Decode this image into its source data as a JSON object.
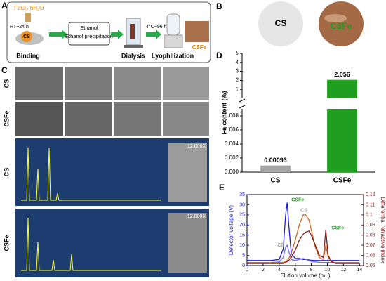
{
  "panel_labels": [
    "A",
    "B",
    "C",
    "D",
    "E"
  ],
  "panel_a": {
    "reagent": "FeCl₃·6H₂O",
    "condition_1": "RT~24 h",
    "material": "CS",
    "step_1": "Binding",
    "step_2": "Ethanol precipitation",
    "step_3": "Dialysis",
    "condition_2": "4°C~96 h",
    "step_4": "Lyophilization",
    "product": "CSFe"
  },
  "panel_b": {
    "labels": [
      "CS",
      "CSFe"
    ]
  },
  "panel_c": {
    "row_labels": [
      "CS",
      "CSFe",
      "CS",
      "CSFe"
    ],
    "magnification": [
      "12,000X",
      "12,000X"
    ]
  },
  "chart_data": [
    {
      "type": "broken_bar",
      "categories": [
        "CS",
        "CSFe"
      ],
      "values": [
        0.00093,
        2.056
      ],
      "colors": [
        "#a6a6a6",
        "#1f9e1f"
      ],
      "ylabel": "Fe content (%)",
      "ylim_lower": [
        0,
        0.009
      ],
      "yticks_lower": [
        {
          "value": 0,
          "label": "0.000"
        },
        0.002,
        0.004,
        0.006,
        0.008
      ],
      "ylim_upper": [
        0,
        5
      ],
      "yticks_upper": [
        1,
        2,
        3,
        4,
        5
      ]
    },
    {
      "type": "line",
      "xlabel": "Elution volume (mL)",
      "ylabel": "Detector voltage (V)",
      "y2label": "Differential refractive index",
      "xlim": [
        0,
        14.5
      ],
      "xticks": [
        0,
        2,
        4,
        6,
        8,
        10,
        12,
        14
      ],
      "ylim": [
        0,
        35
      ],
      "yticks": [
        0,
        5,
        10,
        15,
        20,
        25,
        30,
        35
      ],
      "y2lim": [
        0.05,
        0.12
      ],
      "y2ticks": [
        0.05,
        0.06,
        0.07,
        0.08,
        0.09,
        0.1,
        0.11,
        0.12
      ],
      "x": [
        0,
        2,
        3,
        4,
        4.5,
        4.8,
        5,
        5.2,
        5.5,
        6,
        6.5,
        7,
        7.3,
        7.7,
        8,
        8.5,
        9,
        9.5,
        9.8,
        10.1,
        10.5,
        11,
        12,
        14
      ],
      "series": [
        {
          "name": "CSFe",
          "color": "#1f1fd6",
          "label_color": "#1f9e1f",
          "values": [
            2.5,
            2.5,
            2.5,
            3,
            8,
            25,
            31,
            20,
            6,
            3.5,
            3.5,
            3,
            3,
            2.8,
            2.6,
            2.5,
            2.5,
            2.5,
            2.5,
            2.5,
            2.5,
            2.5,
            2.5,
            2.5
          ]
        },
        {
          "name": "CS",
          "color": "#6b6bff",
          "label_color": "#999999",
          "values": [
            1.5,
            1.5,
            1.5,
            1.8,
            4,
            9,
            10,
            7,
            3,
            2.5,
            3,
            3.5,
            3,
            2.5,
            2,
            1.8,
            1.6,
            1.5,
            1.5,
            1.5,
            1.5,
            1.5,
            1.5,
            1.5
          ]
        },
        {
          "name": "CS",
          "color": "#d2691e",
          "label_color": "#999999",
          "axis": "y2",
          "values": [
            0.053,
            0.053,
            0.053,
            0.053,
            0.053,
            0.054,
            0.055,
            0.057,
            0.062,
            0.075,
            0.09,
            0.1,
            0.1,
            0.095,
            0.085,
            0.068,
            0.058,
            0.056,
            0.07,
            0.058,
            0.054,
            0.053,
            0.053,
            0.053
          ]
        },
        {
          "name": "CSFe",
          "color": "#8b1a1a",
          "label_color": "#1f9e1f",
          "axis": "y2",
          "values": [
            0.052,
            0.052,
            0.052,
            0.052,
            0.052,
            0.053,
            0.054,
            0.055,
            0.058,
            0.065,
            0.075,
            0.081,
            0.083,
            0.084,
            0.08,
            0.07,
            0.06,
            0.058,
            0.085,
            0.06,
            0.054,
            0.052,
            0.052,
            0.052
          ]
        }
      ]
    }
  ]
}
